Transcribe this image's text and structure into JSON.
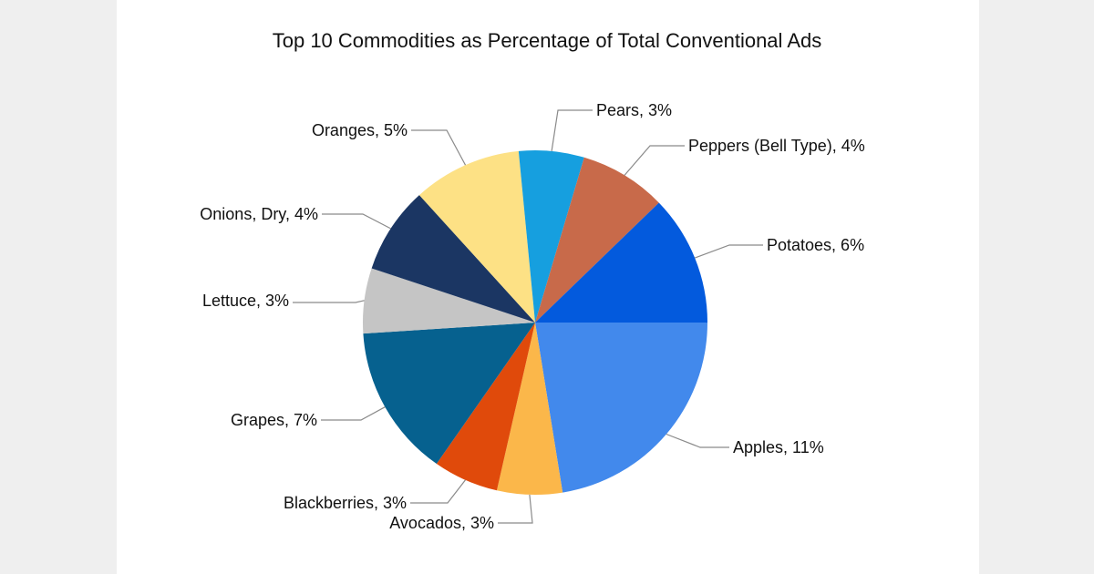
{
  "chart_data": {
    "type": "pie",
    "title": "Top 10 Commodities as Percentage of Total Conventional Ads",
    "start_angle_deg": 0,
    "direction": "clockwise",
    "slices": [
      {
        "label": "Apples",
        "value": 11,
        "display": "Apples, 11%",
        "color": "#4289ec"
      },
      {
        "label": "Avocados",
        "value": 3,
        "display": "Avocados, 3%",
        "color": "#fbb74a"
      },
      {
        "label": "Blackberries",
        "value": 3,
        "display": "Blackberries, 3%",
        "color": "#e04a0b"
      },
      {
        "label": "Grapes",
        "value": 7,
        "display": "Grapes, 7%",
        "color": "#06618f"
      },
      {
        "label": "Lettuce",
        "value": 3,
        "display": "Lettuce, 3%",
        "color": "#c5c5c5"
      },
      {
        "label": "Onions, Dry",
        "value": 4,
        "display": "Onions, Dry, 4%",
        "color": "#1b3663"
      },
      {
        "label": "Oranges",
        "value": 5,
        "display": "Oranges, 5%",
        "color": "#fde185"
      },
      {
        "label": "Pears",
        "value": 3,
        "display": "Pears, 3%",
        "color": "#169fdf"
      },
      {
        "label": "Peppers (Bell Type)",
        "value": 4,
        "display": "Peppers (Bell Type), 4%",
        "color": "#c86a4a"
      },
      {
        "label": "Potatoes",
        "value": 6,
        "display": "Potatoes, 6%",
        "color": "#035add"
      }
    ]
  }
}
